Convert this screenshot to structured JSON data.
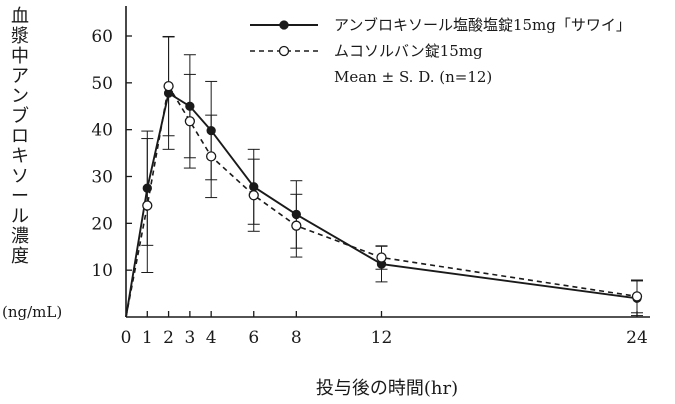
{
  "chart_data": {
    "type": "line",
    "ylabel": "血漿中アンブロキソール濃度",
    "yunit": "(ng/mL)",
    "xlabel": "投与後の時間(hr)",
    "xlim": [
      0,
      24
    ],
    "ylim": [
      0,
      65
    ],
    "xticks": [
      0,
      1,
      2,
      3,
      4,
      6,
      8,
      12,
      24
    ],
    "yticks": [
      10,
      20,
      30,
      40,
      50,
      60
    ],
    "legend_position": "top-right",
    "legend_note": "Mean ± S. D. (n=12)",
    "series": [
      {
        "name": "アンブロキソール塩酸塩錠15mg「サワイ」",
        "style": "solid",
        "marker": "filled-circle",
        "x": [
          0,
          1,
          2,
          3,
          4,
          6,
          8,
          12,
          24
        ],
        "y": [
          0,
          27.5,
          47.8,
          45.0,
          39.8,
          27.8,
          21.9,
          11.3,
          4.0
        ],
        "sd": [
          0,
          12.2,
          12.0,
          11.0,
          10.5,
          8.0,
          7.2,
          3.8,
          3.7
        ]
      },
      {
        "name": "ムコソルバン錠15mg",
        "style": "dashed",
        "marker": "open-circle",
        "x": [
          0,
          1,
          2,
          3,
          4,
          6,
          8,
          12,
          24
        ],
        "y": [
          0,
          23.8,
          49.3,
          41.8,
          34.3,
          26.0,
          19.5,
          12.7,
          4.4
        ],
        "sd": [
          0,
          14.3,
          10.6,
          10.0,
          8.8,
          7.7,
          6.7,
          2.5,
          3.5
        ]
      }
    ]
  },
  "colors": {
    "ink": "#1a1a1a",
    "background": "#ffffff"
  }
}
